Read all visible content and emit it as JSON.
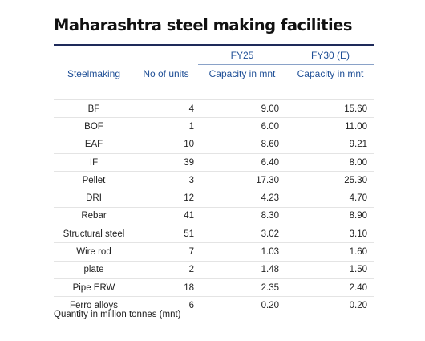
{
  "title": "Maharashtra steel making facilities",
  "table": {
    "group_headers": {
      "fy25": "FY25",
      "fy30": "FY30 (E)"
    },
    "columns": [
      "Steelmaking",
      "No of units",
      "Capacity in mnt",
      "Capacity in mnt"
    ],
    "rows": [
      {
        "name": "BF",
        "units": "4",
        "fy25": "9.00",
        "fy30": "15.60"
      },
      {
        "name": "BOF",
        "units": "1",
        "fy25": "6.00",
        "fy30": "11.00"
      },
      {
        "name": "EAF",
        "units": "10",
        "fy25": "8.60",
        "fy30": "9.21"
      },
      {
        "name": "IF",
        "units": "39",
        "fy25": "6.40",
        "fy30": "8.00"
      },
      {
        "name": "Pellet",
        "units": "3",
        "fy25": "17.30",
        "fy30": "25.30"
      },
      {
        "name": "DRI",
        "units": "12",
        "fy25": "4.23",
        "fy30": "4.70"
      },
      {
        "name": "Rebar",
        "units": "41",
        "fy25": "8.30",
        "fy30": "8.90"
      },
      {
        "name": "Structural steel",
        "units": "51",
        "fy25": "3.02",
        "fy30": "3.10"
      },
      {
        "name": "Wire rod",
        "units": "7",
        "fy25": "1.03",
        "fy30": "1.60"
      },
      {
        "name": "plate",
        "units": "2",
        "fy25": "1.48",
        "fy30": "1.50"
      },
      {
        "name": "Pipe ERW",
        "units": "18",
        "fy25": "2.35",
        "fy30": "2.40"
      },
      {
        "name": "Ferro alloys",
        "units": "6",
        "fy25": "0.20",
        "fy30": "0.20"
      }
    ]
  },
  "footnote": "Quantity in million tonnes (mnt)"
}
